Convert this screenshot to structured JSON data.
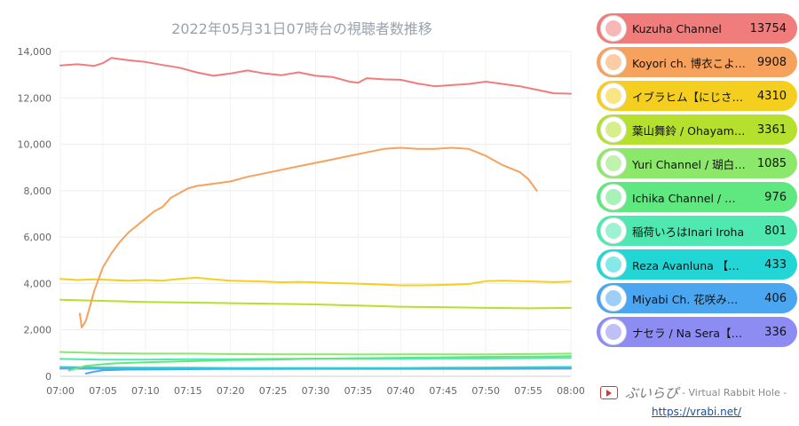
{
  "chart_data": {
    "type": "line",
    "title": "2022年05月31日07時台の視聴者数推移",
    "x_ticks": [
      "07:00",
      "07:05",
      "07:10",
      "07:15",
      "07:20",
      "07:25",
      "07:30",
      "07:35",
      "07:40",
      "07:45",
      "07:50",
      "07:55",
      "08:00"
    ],
    "xlim_minutes": [
      0,
      60
    ],
    "ylim": [
      0,
      14000
    ],
    "y_ticks": [
      "0",
      "2,000",
      "4,000",
      "6,000",
      "8,000",
      "10,000",
      "12,000",
      "14,000"
    ],
    "y_tick_values": [
      0,
      2000,
      4000,
      6000,
      8000,
      10000,
      12000,
      14000
    ],
    "grid": true,
    "legend_position": "right",
    "series": [
      {
        "name": "Kuzuha Channel",
        "value": "13754",
        "color": "#f07c7c",
        "points": [
          [
            0,
            13400
          ],
          [
            2,
            13450
          ],
          [
            4,
            13380
          ],
          [
            5,
            13500
          ],
          [
            6,
            13720
          ],
          [
            8,
            13620
          ],
          [
            10,
            13550
          ],
          [
            12,
            13420
          ],
          [
            14,
            13300
          ],
          [
            16,
            13100
          ],
          [
            18,
            12950
          ],
          [
            20,
            13050
          ],
          [
            22,
            13180
          ],
          [
            24,
            13050
          ],
          [
            26,
            12980
          ],
          [
            28,
            13100
          ],
          [
            30,
            12950
          ],
          [
            32,
            12900
          ],
          [
            34,
            12700
          ],
          [
            35,
            12650
          ],
          [
            36,
            12850
          ],
          [
            38,
            12800
          ],
          [
            40,
            12780
          ],
          [
            42,
            12620
          ],
          [
            44,
            12500
          ],
          [
            46,
            12550
          ],
          [
            48,
            12600
          ],
          [
            50,
            12700
          ],
          [
            52,
            12600
          ],
          [
            54,
            12500
          ],
          [
            56,
            12350
          ],
          [
            58,
            12200
          ],
          [
            60,
            12180
          ]
        ]
      },
      {
        "name": "Koyori ch. 博衣こより - holoX -",
        "value": "9908",
        "color": "#f7a25c",
        "points": [
          [
            2.3,
            2700
          ],
          [
            2.5,
            2100
          ],
          [
            3,
            2400
          ],
          [
            4,
            3700
          ],
          [
            5,
            4700
          ],
          [
            6,
            5300
          ],
          [
            7,
            5800
          ],
          [
            8,
            6200
          ],
          [
            9,
            6500
          ],
          [
            10,
            6800
          ],
          [
            11,
            7100
          ],
          [
            12,
            7300
          ],
          [
            13,
            7700
          ],
          [
            14,
            7900
          ],
          [
            15,
            8100
          ],
          [
            16,
            8200
          ],
          [
            17,
            8250
          ],
          [
            18,
            8300
          ],
          [
            19,
            8350
          ],
          [
            20,
            8400
          ],
          [
            22,
            8600
          ],
          [
            24,
            8750
          ],
          [
            26,
            8900
          ],
          [
            28,
            9050
          ],
          [
            30,
            9200
          ],
          [
            32,
            9350
          ],
          [
            34,
            9500
          ],
          [
            36,
            9650
          ],
          [
            38,
            9800
          ],
          [
            40,
            9850
          ],
          [
            42,
            9800
          ],
          [
            44,
            9800
          ],
          [
            46,
            9850
          ],
          [
            48,
            9800
          ],
          [
            50,
            9500
          ],
          [
            52,
            9100
          ],
          [
            54,
            8800
          ],
          [
            55,
            8500
          ],
          [
            56,
            8000
          ]
        ]
      },
      {
        "name": "イブラヒム【にじさんじ】",
        "value": "4310",
        "color": "#f5cf1f",
        "points": [
          [
            0,
            4200
          ],
          [
            2,
            4150
          ],
          [
            4,
            4180
          ],
          [
            6,
            4150
          ],
          [
            8,
            4120
          ],
          [
            10,
            4150
          ],
          [
            12,
            4120
          ],
          [
            14,
            4200
          ],
          [
            16,
            4250
          ],
          [
            18,
            4180
          ],
          [
            20,
            4120
          ],
          [
            22,
            4100
          ],
          [
            24,
            4080
          ],
          [
            26,
            4050
          ],
          [
            28,
            4070
          ],
          [
            30,
            4050
          ],
          [
            32,
            4020
          ],
          [
            34,
            4000
          ],
          [
            36,
            3980
          ],
          [
            38,
            3950
          ],
          [
            40,
            3920
          ],
          [
            42,
            3920
          ],
          [
            44,
            3930
          ],
          [
            46,
            3950
          ],
          [
            48,
            3980
          ],
          [
            50,
            4100
          ],
          [
            52,
            4120
          ],
          [
            54,
            4100
          ],
          [
            56,
            4080
          ],
          [
            58,
            4060
          ],
          [
            60,
            4080
          ]
        ]
      },
      {
        "name": "葉山舞鈴 / Ohayama Mirin【Vtuber】",
        "value": "3361",
        "color": "#b5e02e",
        "points": [
          [
            0,
            3300
          ],
          [
            5,
            3250
          ],
          [
            10,
            3200
          ],
          [
            15,
            3180
          ],
          [
            20,
            3150
          ],
          [
            25,
            3130
          ],
          [
            30,
            3100
          ],
          [
            35,
            3050
          ],
          [
            40,
            3000
          ],
          [
            45,
            2980
          ],
          [
            50,
            2950
          ],
          [
            55,
            2930
          ],
          [
            60,
            2950
          ]
        ]
      },
      {
        "name": "Yuri Channel / 瑚白ユリ【ななしいんく】",
        "value": "1085",
        "color": "#8be86a",
        "points": [
          [
            0,
            1050
          ],
          [
            5,
            1000
          ],
          [
            10,
            980
          ],
          [
            15,
            980
          ],
          [
            20,
            960
          ],
          [
            25,
            950
          ],
          [
            30,
            950
          ],
          [
            35,
            940
          ],
          [
            40,
            950
          ],
          [
            45,
            950
          ],
          [
            50,
            940
          ],
          [
            55,
            960
          ],
          [
            60,
            980
          ]
        ]
      },
      {
        "name": "Ichika Channel / 宗谷いちか【あおぎり高校】",
        "value": "976",
        "color": "#5ee87f",
        "points": [
          [
            1,
            250
          ],
          [
            3,
            450
          ],
          [
            6,
            550
          ],
          [
            10,
            600
          ],
          [
            15,
            650
          ],
          [
            20,
            700
          ],
          [
            25,
            720
          ],
          [
            30,
            760
          ],
          [
            35,
            780
          ],
          [
            40,
            800
          ],
          [
            45,
            820
          ],
          [
            50,
            840
          ],
          [
            55,
            850
          ],
          [
            60,
            870
          ]
        ]
      },
      {
        "name": "稲荷いろはInari Iroha",
        "value": "801",
        "color": "#4fe8b0",
        "points": [
          [
            0,
            750
          ],
          [
            5,
            720
          ],
          [
            10,
            720
          ],
          [
            15,
            740
          ],
          [
            20,
            740
          ],
          [
            25,
            750
          ],
          [
            30,
            760
          ],
          [
            35,
            760
          ],
          [
            40,
            760
          ],
          [
            45,
            770
          ],
          [
            50,
            770
          ],
          [
            55,
            780
          ],
          [
            60,
            790
          ]
        ]
      },
      {
        "name": "Reza Avanluna 【NIJISANJI ID】",
        "value": "433",
        "color": "#22d6d6",
        "points": [
          [
            0,
            400
          ],
          [
            5,
            380
          ],
          [
            10,
            370
          ],
          [
            15,
            370
          ],
          [
            20,
            360
          ],
          [
            25,
            360
          ],
          [
            30,
            360
          ],
          [
            35,
            360
          ],
          [
            40,
            360
          ],
          [
            45,
            370
          ],
          [
            50,
            380
          ],
          [
            55,
            390
          ],
          [
            60,
            400
          ]
        ]
      },
      {
        "name": "Miyabi Ch. 花咲みやび",
        "value": "406",
        "color": "#4aa6f0",
        "points": [
          [
            3,
            120
          ],
          [
            4,
            200
          ],
          [
            5,
            260
          ],
          [
            8,
            290
          ],
          [
            12,
            300
          ],
          [
            16,
            310
          ],
          [
            20,
            320
          ],
          [
            25,
            320
          ],
          [
            30,
            330
          ],
          [
            35,
            330
          ],
          [
            40,
            330
          ],
          [
            45,
            340
          ],
          [
            50,
            340
          ],
          [
            55,
            340
          ],
          [
            60,
            350
          ]
        ]
      },
      {
        "name": "ナセラ / Na Sera【ぶいすぽっ！】",
        "value": "336",
        "color": "#8c8cf2",
        "points": [
          [
            0,
            330
          ],
          [
            10,
            320
          ],
          [
            20,
            320
          ],
          [
            30,
            320
          ],
          [
            40,
            320
          ],
          [
            50,
            320
          ],
          [
            60,
            330
          ]
        ]
      }
    ]
  },
  "footer": {
    "brand": "ぶいらぴ",
    "subtitle": "- Virtual Rabbit Hole -",
    "url": "https://vrabi.net/"
  }
}
